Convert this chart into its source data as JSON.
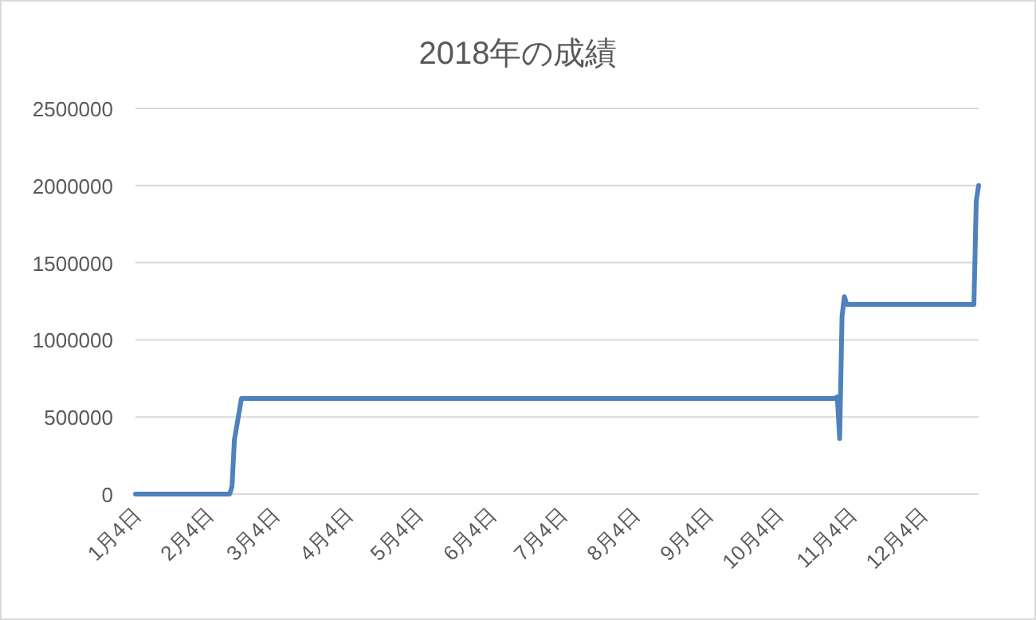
{
  "chart_data": {
    "type": "line",
    "title": "2018年の成績",
    "x": [
      "2018-01-04",
      "2018-02-13",
      "2018-02-14",
      "2018-02-15",
      "2018-02-18",
      "2018-10-28",
      "2018-10-29",
      "2018-10-30",
      "2018-10-31",
      "2018-11-01",
      "2018-11-02",
      "2018-12-26",
      "2018-12-27",
      "2018-12-28"
    ],
    "series": [
      {
        "color": "#4f81bd",
        "values": [
          0,
          0,
          50000,
          350000,
          620000,
          620000,
          630000,
          360000,
          1150000,
          1280000,
          1230000,
          1230000,
          1900000,
          2000000
        ]
      }
    ],
    "xlim": [
      "2018-01-04",
      "2018-12-28"
    ],
    "xticks": [
      {
        "value": "2018-01-04",
        "label": "1月4日"
      },
      {
        "value": "2018-02-04",
        "label": "2月4日"
      },
      {
        "value": "2018-03-04",
        "label": "3月4日"
      },
      {
        "value": "2018-04-04",
        "label": "4月4日"
      },
      {
        "value": "2018-05-04",
        "label": "5月4日"
      },
      {
        "value": "2018-06-04",
        "label": "6月4日"
      },
      {
        "value": "2018-07-04",
        "label": "7月4日"
      },
      {
        "value": "2018-08-04",
        "label": "8月4日"
      },
      {
        "value": "2018-09-04",
        "label": "9月4日"
      },
      {
        "value": "2018-10-04",
        "label": "10月4日"
      },
      {
        "value": "2018-11-04",
        "label": "11月4日"
      },
      {
        "value": "2018-12-04",
        "label": "12月4日"
      }
    ],
    "ylim": [
      0,
      2500000
    ],
    "yticks": [
      0,
      500000,
      1000000,
      1500000,
      2000000,
      2500000
    ],
    "grid": "y",
    "marker": "none",
    "line_style": "solid"
  }
}
